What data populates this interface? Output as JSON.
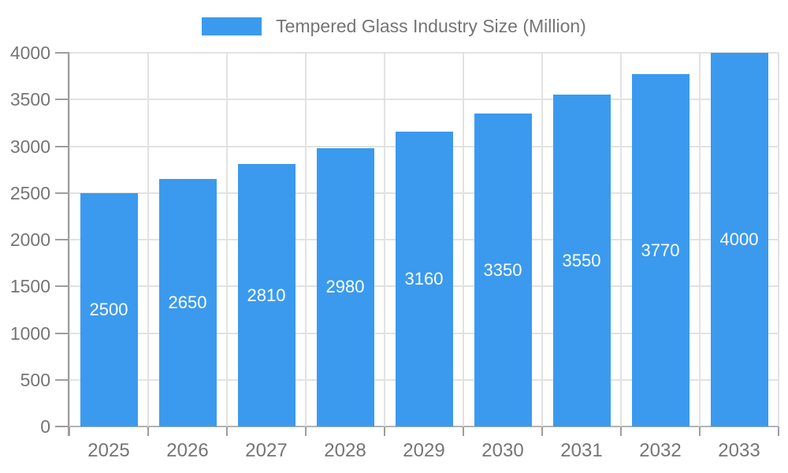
{
  "chart_data": {
    "type": "bar",
    "title": "",
    "legend": "Tempered Glass Industry Size (Million)",
    "legend_position": "top",
    "categories": [
      "2025",
      "2026",
      "2027",
      "2028",
      "2029",
      "2030",
      "2031",
      "2032",
      "2033"
    ],
    "values": [
      2500,
      2650,
      2810,
      2980,
      3160,
      3350,
      3550,
      3770,
      4000
    ],
    "xlabel": "",
    "ylabel": "",
    "ylim": [
      0,
      4000
    ],
    "yticks": [
      0,
      500,
      1000,
      1500,
      2000,
      2500,
      3000,
      3500,
      4000
    ],
    "grid": true,
    "bar_labels_inside": true,
    "colors": {
      "bar": "#3B9AEE",
      "bar_label": "#ffffff",
      "axis_text": "#757575",
      "legend_text": "#757575",
      "gridline": "#e2e2e2",
      "axis_line": "#9e9e9e",
      "baseline": "#b3b3b3",
      "background": "#ffffff"
    }
  }
}
